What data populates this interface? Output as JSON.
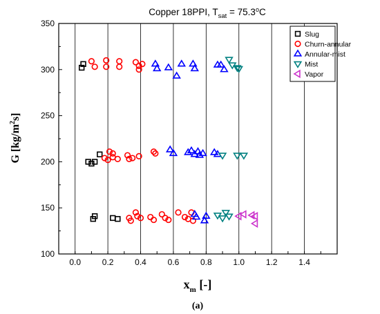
{
  "chart_data": {
    "type": "scatter",
    "title_main": "Copper 18PPI, T",
    "title_sub": "sat",
    "title_rest": " = 75.3",
    "title_deg": "o",
    "title_unit": "C",
    "xlabel_main": "x",
    "xlabel_sub": "m",
    "xlabel_unit": " [-]",
    "ylabel_main": "G [kg/m",
    "ylabel_sup": "2",
    "ylabel_rest": "s]",
    "caption": "(a)",
    "xlim": [
      -0.1,
      1.6
    ],
    "ylim": [
      100,
      350
    ],
    "xticks": [
      "0.0",
      "0.2",
      "0.4",
      "0.6",
      "0.8",
      "1.0",
      "1.2",
      "1.4"
    ],
    "xtick_values": [
      0.0,
      0.2,
      0.4,
      0.6,
      0.8,
      1.0,
      1.2,
      1.4
    ],
    "yticks": [
      "100",
      "150",
      "200",
      "250",
      "300",
      "350"
    ],
    "ytick_values": [
      100,
      150,
      200,
      250,
      300,
      350
    ],
    "grid": "vertical",
    "legend_position": "top-right",
    "series": [
      {
        "name": "Slug",
        "marker": "square",
        "color": "#000000",
        "points": [
          [
            0.04,
            302
          ],
          [
            0.05,
            306
          ],
          [
            0.08,
            200
          ],
          [
            0.1,
            198
          ],
          [
            0.12,
            200
          ],
          [
            0.15,
            208
          ],
          [
            0.11,
            138
          ],
          [
            0.12,
            141
          ],
          [
            0.23,
            139
          ],
          [
            0.26,
            138
          ]
        ]
      },
      {
        "name": "Churn-annular",
        "marker": "circle",
        "color": "#ff0000",
        "points": [
          [
            0.1,
            309
          ],
          [
            0.12,
            303
          ],
          [
            0.19,
            310
          ],
          [
            0.19,
            303
          ],
          [
            0.27,
            309
          ],
          [
            0.27,
            303
          ],
          [
            0.37,
            308
          ],
          [
            0.39,
            304
          ],
          [
            0.39,
            300
          ],
          [
            0.41,
            306
          ],
          [
            0.18,
            204
          ],
          [
            0.2,
            202
          ],
          [
            0.21,
            211
          ],
          [
            0.23,
            209
          ],
          [
            0.23,
            205
          ],
          [
            0.26,
            203
          ],
          [
            0.32,
            207
          ],
          [
            0.33,
            203
          ],
          [
            0.35,
            204
          ],
          [
            0.39,
            206
          ],
          [
            0.48,
            211
          ],
          [
            0.49,
            209
          ],
          [
            0.33,
            139
          ],
          [
            0.34,
            136
          ],
          [
            0.37,
            145
          ],
          [
            0.38,
            141
          ],
          [
            0.4,
            139
          ],
          [
            0.46,
            140
          ],
          [
            0.48,
            137
          ],
          [
            0.53,
            143
          ],
          [
            0.55,
            139
          ],
          [
            0.57,
            137
          ],
          [
            0.63,
            145
          ],
          [
            0.67,
            140
          ],
          [
            0.69,
            138
          ],
          [
            0.71,
            145
          ],
          [
            0.72,
            136
          ]
        ]
      },
      {
        "name": "Annular-mist",
        "marker": "triangle-up",
        "color": "#0000ff",
        "points": [
          [
            0.49,
            306
          ],
          [
            0.5,
            301
          ],
          [
            0.57,
            302
          ],
          [
            0.62,
            293
          ],
          [
            0.65,
            306
          ],
          [
            0.72,
            306
          ],
          [
            0.73,
            301
          ],
          [
            0.87,
            305
          ],
          [
            0.89,
            305
          ],
          [
            0.91,
            300
          ],
          [
            0.58,
            213
          ],
          [
            0.6,
            209
          ],
          [
            0.69,
            210
          ],
          [
            0.71,
            212
          ],
          [
            0.73,
            208
          ],
          [
            0.75,
            211
          ],
          [
            0.76,
            207
          ],
          [
            0.78,
            209
          ],
          [
            0.85,
            210
          ],
          [
            0.87,
            208
          ],
          [
            0.73,
            143
          ],
          [
            0.74,
            140
          ],
          [
            0.79,
            136
          ],
          [
            0.8,
            141
          ]
        ]
      },
      {
        "name": "Mist",
        "marker": "triangle-down",
        "color": "#008080",
        "points": [
          [
            0.94,
            311
          ],
          [
            0.96,
            305
          ],
          [
            0.99,
            302
          ],
          [
            1.0,
            301
          ],
          [
            0.9,
            207
          ],
          [
            0.99,
            207
          ],
          [
            1.03,
            207
          ],
          [
            0.87,
            142
          ],
          [
            0.9,
            139
          ],
          [
            0.92,
            145
          ],
          [
            0.94,
            141
          ]
        ]
      },
      {
        "name": "Vapor",
        "marker": "triangle-left",
        "color": "#cc33cc",
        "points": [
          [
            1.0,
            141
          ],
          [
            1.03,
            143
          ],
          [
            1.08,
            142
          ],
          [
            1.1,
            141
          ],
          [
            1.1,
            133
          ]
        ]
      }
    ]
  }
}
